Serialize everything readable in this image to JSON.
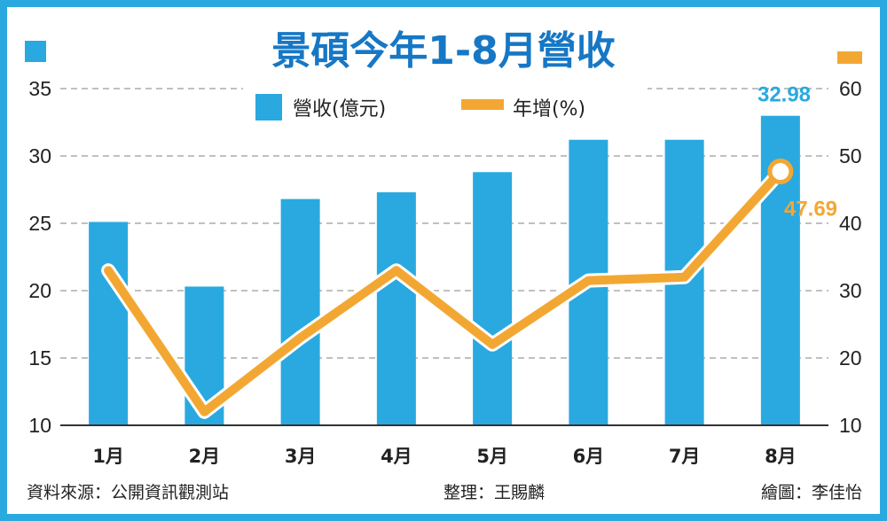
{
  "chart_data": {
    "type": "bar",
    "title": "景碩今年1-8月營收",
    "categories": [
      "1月",
      "2月",
      "3月",
      "4月",
      "5月",
      "6月",
      "7月",
      "8月"
    ],
    "series": [
      {
        "name": "營收(億元)",
        "type": "bar",
        "axis": "left",
        "color": "#29a9e0",
        "values": [
          25.1,
          20.3,
          26.8,
          27.3,
          28.8,
          31.2,
          31.2,
          32.98
        ]
      },
      {
        "name": "年增(%)",
        "type": "line",
        "axis": "right",
        "color": "#f3a733",
        "values": [
          33.0,
          12.0,
          23.0,
          33.0,
          22.0,
          31.5,
          32.0,
          47.69
        ]
      }
    ],
    "ylim_left": [
      10,
      35
    ],
    "yticks_left": [
      "10",
      "15",
      "20",
      "25",
      "30",
      "35"
    ],
    "ylim_right": [
      10,
      60
    ],
    "yticks_right": [
      "10",
      "20",
      "30",
      "40",
      "50",
      "60"
    ],
    "data_labels": {
      "bar_last": "32.98",
      "line_last": "47.69"
    },
    "grid": true,
    "legend_position": "top-center"
  },
  "footer": {
    "source": "資料來源：公開資訊觀測站",
    "editor": "整理：王賜麟",
    "artist": "繪圖：李佳怡"
  }
}
